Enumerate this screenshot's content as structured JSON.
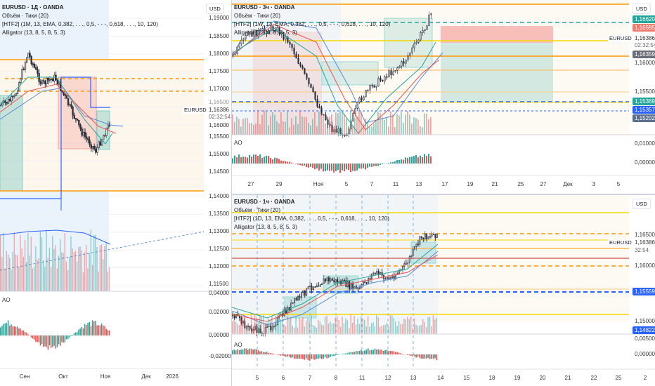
{
  "colors": {
    "up": "#26a69a",
    "down": "#ef5350",
    "orange": "#ff9800",
    "yellow": "#ffeb3b",
    "blue": "#2962ff",
    "bgBlue": "#eaf2fc",
    "bgBeige": "#fdf6ec"
  },
  "left": {
    "legend": {
      "title": "EURUSD · 1Д · OANDA",
      "volume": "Объём · Тики (20)",
      "htf": "[HTF2] (1M, 13, EMA, 0,382, . . ., 0,5, - - -, 0,618, . . ., 10, 120)",
      "alligator": "Alligator (13, 8, 5, 8, 5, 3)"
    },
    "currency": "USD",
    "price_labels": [
      "1,19000",
      "1,18500",
      "1,18000",
      "1,17500",
      "1,17000",
      "1,16000",
      "1,15500",
      "1,15000",
      "1,14500",
      "1,14000",
      "1,13500",
      "1,13000",
      "1,12500",
      "1,12000",
      "1,11500"
    ],
    "hidden_label": "1,16500",
    "symbol": "EURUSD",
    "last_price": "1,16386",
    "countdown": "02:32:54",
    "ao_label": "AO",
    "ao_labels": [
      "0,04000",
      "0,02000",
      "0,00000",
      "-0,02000"
    ],
    "x_labels": [
      "Сен",
      "Окт",
      "Ноя",
      "Дек",
      "2026"
    ]
  },
  "top": {
    "legend": {
      "title": "EURUSD · 3ч · OANDA",
      "volume": "Объём · Тики (20)",
      "htf": "[HTF2] (1W, 13, EMA, 0,382, . . ., 0,5, - - -, 0,618, . . ., 10, 120)",
      "alligator": "Alligator (13, 8, 5, 8, 5, 3)"
    },
    "currency": "USD",
    "tags": [
      {
        "v": "1,16620",
        "c": "#26a69a"
      },
      {
        "v": "1,16585",
        "c": "#ef7c70"
      },
      {
        "v": "1,16359",
        "c": "#6b6e76"
      },
      {
        "v": "1,15369",
        "c": "#26a69a"
      },
      {
        "v": "1,15357",
        "c": "#2962ff"
      },
      {
        "v": "1,15202",
        "c": "#5b6e8c"
      }
    ],
    "price_labels": [
      "1,16000",
      "1,15500"
    ],
    "symbol": "EURUSD",
    "last_price": "1,16386",
    "countdown": "02:32:54",
    "ao_label": "AO",
    "ao_labels": [
      "0,01000",
      "0,00000"
    ],
    "x_labels": [
      "27",
      "29",
      "Ноя",
      "5",
      "7",
      "11",
      "13",
      "17",
      "19",
      "21",
      "25",
      "27",
      "Дек",
      "3",
      "5"
    ]
  },
  "bottom": {
    "legend": {
      "title": "EURUSD · 1ч · OANDA",
      "volume": "Объём · Тики (20)",
      "htf": "[HTF2] (1D, 13, EMA, 0,382, . . ., 0,5, - - -, 0,618, . . ., 10, 120)",
      "alligator": "Alligator (13, 8, 5, 8, 5, 3)"
    },
    "currency": "USD",
    "price_labels": [
      "1,16500",
      "1,16000",
      "1,15000"
    ],
    "tags": [
      {
        "v": "1,15559",
        "c": "#2962ff"
      },
      {
        "v": "1,14822",
        "c": "#2962ff"
      }
    ],
    "symbol": "EURUSD",
    "last_price": "1,16386",
    "countdown": "32:54",
    "ao_label": "AO",
    "ao_labels": [
      "0,00500",
      "0,00000"
    ],
    "x_labels": [
      "5",
      "6",
      "7",
      "8",
      "11",
      "12",
      "13",
      "14",
      "15",
      "18",
      "19",
      "20",
      "21",
      "22",
      "25",
      "2"
    ]
  }
}
